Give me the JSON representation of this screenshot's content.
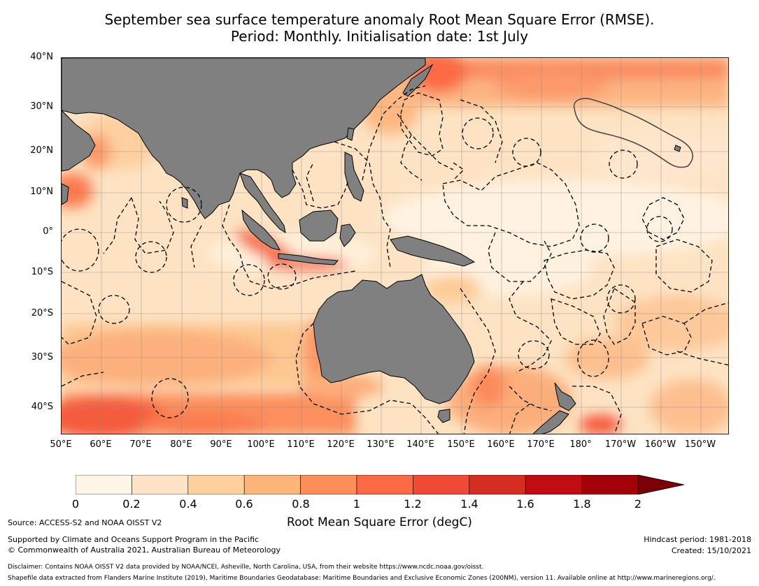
{
  "title": {
    "line1": "September sea surface temperature anomaly Root Mean Square Error (RMSE).",
    "line2": "Period: Monthly. Initialisation date: 1st July"
  },
  "map": {
    "lat_ticks": [
      "40°N",
      "30°N",
      "20°N",
      "10°N",
      "0°",
      "10°S",
      "20°S",
      "30°S",
      "40°S"
    ],
    "lon_ticks": [
      "50°E",
      "60°E",
      "70°E",
      "80°E",
      "90°E",
      "100°E",
      "110°E",
      "120°E",
      "130°E",
      "140°E",
      "150°E",
      "160°E",
      "170°E",
      "180°",
      "170°W",
      "160°W",
      "150°W"
    ],
    "land_color": "#808080",
    "ocean_base_color": "#fde3c3",
    "eez_line_style": "dashed black",
    "grid": true
  },
  "colorbar": {
    "label": "Root Mean Square Error (degC)",
    "ticks": [
      "0",
      "0.2",
      "0.4",
      "0.6",
      "0.8",
      "1",
      "1.2",
      "1.4",
      "1.6",
      "1.8",
      "2"
    ],
    "colors": [
      "#fff5e8",
      "#fee3c6",
      "#fdd09e",
      "#fdb47a",
      "#fc8f59",
      "#fb6a45",
      "#f04a37",
      "#d62d20",
      "#c10c14",
      "#a40008"
    ],
    "extend_color": "#7a0005",
    "extend": "max"
  },
  "footer": {
    "source": "Source: ACCESS-S2 and NOAA OISST V2",
    "supported": "Supported by Climate and Oceans Support Program in the Pacific",
    "copyright": "© Commonwealth of Australia 2021, Australian Bureau of Meteorology",
    "hindcast": "Hindcast period: 1981-2018",
    "created": "Created: 15/10/2021",
    "disclaimer": "Disclaimer: Contains NOAA OISST V2 data provided by NOAA/NCEI, Asheville, North Carolina, USA, from their website https://www.ncdc.noaa.gov/oisst.",
    "shapefile": "Shapefile data extracted from Flanders Marine Institute (2019), Maritime Boundaries Geodatabase: Maritime Boundaries and Exclusive Economic Zones (200NM), version 11. Available online at http://www.marineregions.org/."
  }
}
